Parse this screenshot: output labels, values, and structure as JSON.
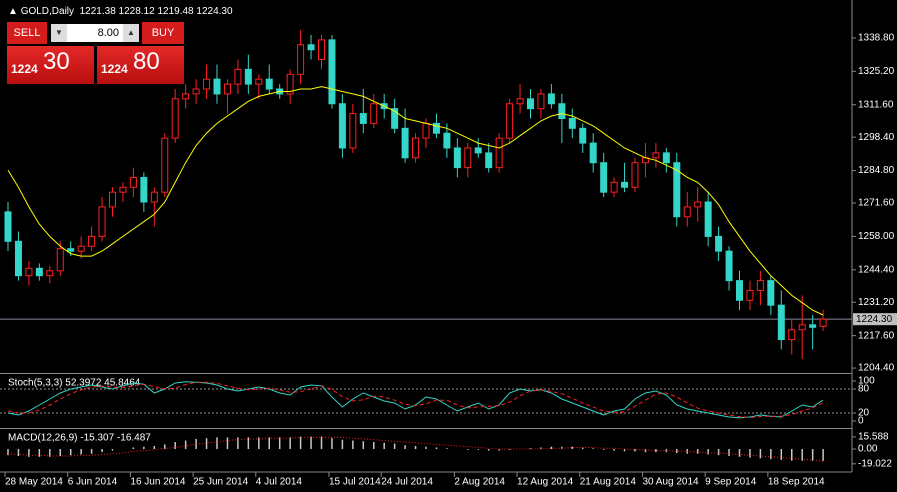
{
  "header": {
    "symbol": "GOLD,Daily",
    "ohlc": "1221.38 1228.12 1219.48 1224.30"
  },
  "trade_panel": {
    "sell": "SELL",
    "buy": "BUY",
    "volume": "8.00",
    "sell_big": "1224",
    "sell_small": "30",
    "buy_big": "1224",
    "buy_small": "80"
  },
  "chart_data": [
    {
      "type": "candlestick",
      "up_color": "#ff2020",
      "down_color": "#33d6c8",
      "ylim": [
        1202.8,
        1352.2
      ],
      "yticks": [
        {
          "value": 1338.8,
          "label": "1338.80"
        },
        {
          "value": 1325.2,
          "label": "1325.20"
        },
        {
          "value": 1311.6,
          "label": "1311.60"
        },
        {
          "value": 1298.4,
          "label": "1298.40"
        },
        {
          "value": 1284.8,
          "label": "1284.80"
        },
        {
          "value": 1271.6,
          "label": "1271.60"
        },
        {
          "value": 1258,
          "label": "1258.00"
        },
        {
          "value": 1244.4,
          "label": "1244.40"
        },
        {
          "value": 1231.2,
          "label": "1231.20"
        },
        {
          "value": 1217.6,
          "label": "1217.60"
        },
        {
          "value": 1204.4,
          "label": "1204.40"
        }
      ],
      "price_line": {
        "value": 1224.3,
        "label": "1224.30"
      },
      "categories": [
        "28 May 2014",
        null,
        null,
        null,
        null,
        null,
        "6 Jun 2014",
        null,
        null,
        null,
        null,
        null,
        "16 Jun 2014",
        null,
        null,
        null,
        null,
        null,
        "25 Jun 2014",
        null,
        null,
        null,
        null,
        null,
        "4 Jul 2014",
        null,
        null,
        null,
        null,
        null,
        null,
        "15 Jul 2014",
        null,
        null,
        null,
        null,
        "24 Jul 2014",
        null,
        null,
        null,
        null,
        null,
        null,
        "2 Aug 2014",
        null,
        null,
        null,
        null,
        null,
        "12 Aug 2014",
        null,
        null,
        null,
        null,
        null,
        "21 Aug 2014",
        null,
        null,
        null,
        null,
        null,
        "30 Aug 2014",
        null,
        null,
        null,
        null,
        null,
        "9 Sep 2014",
        null,
        null,
        null,
        null,
        null,
        "18 Sep 2014",
        null,
        null,
        null,
        null,
        null
      ],
      "candles": [
        [
          1268,
          1272,
          1252,
          1256
        ],
        [
          1256,
          1260,
          1240,
          1242
        ],
        [
          1242,
          1248,
          1238,
          1245
        ],
        [
          1245,
          1247,
          1240,
          1242
        ],
        [
          1242,
          1246,
          1239,
          1244
        ],
        [
          1244,
          1256,
          1242,
          1253
        ],
        [
          1253,
          1256,
          1250,
          1252
        ],
        [
          1252,
          1258,
          1249,
          1254
        ],
        [
          1254,
          1262,
          1252,
          1258
        ],
        [
          1258,
          1274,
          1256,
          1270
        ],
        [
          1270,
          1278,
          1266,
          1276
        ],
        [
          1276,
          1280,
          1272,
          1278
        ],
        [
          1278,
          1286,
          1274,
          1282
        ],
        [
          1282,
          1284,
          1268,
          1272
        ],
        [
          1272,
          1278,
          1262,
          1276
        ],
        [
          1276,
          1300,
          1274,
          1298
        ],
        [
          1298,
          1318,
          1296,
          1314
        ],
        [
          1314,
          1320,
          1310,
          1316
        ],
        [
          1316,
          1322,
          1312,
          1318
        ],
        [
          1318,
          1328,
          1314,
          1322
        ],
        [
          1322,
          1328,
          1312,
          1316
        ],
        [
          1316,
          1322,
          1308,
          1320
        ],
        [
          1320,
          1330,
          1316,
          1326
        ],
        [
          1326,
          1332,
          1316,
          1320
        ],
        [
          1320,
          1324,
          1314,
          1322
        ],
        [
          1322,
          1328,
          1316,
          1318
        ],
        [
          1318,
          1320,
          1314,
          1316
        ],
        [
          1316,
          1326,
          1312,
          1324
        ],
        [
          1324,
          1342,
          1320,
          1336
        ],
        [
          1336,
          1340,
          1330,
          1334
        ],
        [
          1330,
          1340,
          1326,
          1338
        ],
        [
          1338,
          1340,
          1310,
          1312
        ],
        [
          1312,
          1316,
          1290,
          1294
        ],
        [
          1294,
          1312,
          1292,
          1308
        ],
        [
          1308,
          1318,
          1300,
          1304
        ],
        [
          1304,
          1316,
          1302,
          1312
        ],
        [
          1312,
          1316,
          1306,
          1310
        ],
        [
          1310,
          1314,
          1300,
          1302
        ],
        [
          1302,
          1310,
          1288,
          1290
        ],
        [
          1290,
          1300,
          1288,
          1298
        ],
        [
          1298,
          1306,
          1294,
          1304
        ],
        [
          1304,
          1308,
          1298,
          1300
        ],
        [
          1300,
          1304,
          1290,
          1294
        ],
        [
          1294,
          1298,
          1282,
          1286
        ],
        [
          1286,
          1296,
          1282,
          1294
        ],
        [
          1294,
          1298,
          1290,
          1292
        ],
        [
          1292,
          1296,
          1284,
          1286
        ],
        [
          1286,
          1300,
          1284,
          1298
        ],
        [
          1298,
          1314,
          1296,
          1312
        ],
        [
          1312,
          1320,
          1308,
          1314
        ],
        [
          1314,
          1318,
          1306,
          1310
        ],
        [
          1310,
          1318,
          1306,
          1316
        ],
        [
          1316,
          1320,
          1310,
          1312
        ],
        [
          1312,
          1316,
          1296,
          1306
        ],
        [
          1306,
          1310,
          1298,
          1302
        ],
        [
          1302,
          1304,
          1292,
          1296
        ],
        [
          1296,
          1300,
          1284,
          1288
        ],
        [
          1288,
          1292,
          1274,
          1276
        ],
        [
          1276,
          1282,
          1274,
          1280
        ],
        [
          1280,
          1288,
          1276,
          1278
        ],
        [
          1278,
          1290,
          1276,
          1288
        ],
        [
          1288,
          1296,
          1282,
          1290
        ],
        [
          1290,
          1296,
          1286,
          1292
        ],
        [
          1292,
          1294,
          1284,
          1288
        ],
        [
          1288,
          1292,
          1262,
          1266
        ],
        [
          1266,
          1276,
          1262,
          1270
        ],
        [
          1270,
          1278,
          1264,
          1272
        ],
        [
          1272,
          1276,
          1254,
          1258
        ],
        [
          1258,
          1262,
          1248,
          1252
        ],
        [
          1252,
          1254,
          1236,
          1240
        ],
        [
          1240,
          1244,
          1228,
          1232
        ],
        [
          1232,
          1240,
          1228,
          1236
        ],
        [
          1236,
          1244,
          1230,
          1240
        ],
        [
          1240,
          1242,
          1226,
          1230
        ],
        [
          1230,
          1236,
          1212,
          1216
        ],
        [
          1216,
          1224,
          1210,
          1220
        ],
        [
          1220,
          1234,
          1208,
          1222
        ],
        [
          1222,
          1226,
          1212,
          1221
        ],
        [
          1221.38,
          1228.12,
          1219.48,
          1224.3
        ]
      ],
      "series": [
        {
          "style": "line",
          "color": "#ffff00",
          "values": [
            1285,
            1278,
            1270,
            1263,
            1258,
            1254,
            1251,
            1250,
            1250,
            1252,
            1255,
            1258,
            1261,
            1264,
            1267,
            1272,
            1280,
            1288,
            1295,
            1300,
            1304,
            1307,
            1310,
            1313,
            1315,
            1316,
            1317,
            1317,
            1318,
            1318,
            1319,
            1318,
            1317,
            1316,
            1315,
            1313,
            1311,
            1309,
            1306,
            1305,
            1304,
            1303,
            1302,
            1300,
            1298,
            1296,
            1295,
            1294,
            1296,
            1299,
            1302,
            1305,
            1307,
            1308,
            1307,
            1305,
            1303,
            1300,
            1297,
            1294,
            1292,
            1290,
            1289,
            1287,
            1285,
            1282,
            1280,
            1276,
            1271,
            1264,
            1258,
            1252,
            1247,
            1242,
            1238,
            1234,
            1231,
            1228,
            1226
          ]
        }
      ]
    },
    {
      "type": "line",
      "label": "Stoch(5,3,3) 52.3972 45.8464",
      "ylim": [
        -15,
        115
      ],
      "yticks": [
        100,
        80,
        20,
        0
      ],
      "levels": [
        80,
        20
      ],
      "series": [
        {
          "style": "line",
          "color": "#33d6c8",
          "values": [
            20,
            15,
            25,
            40,
            55,
            70,
            80,
            85,
            90,
            85,
            80,
            88,
            95,
            92,
            70,
            80,
            95,
            98,
            97,
            95,
            90,
            80,
            75,
            80,
            85,
            80,
            70,
            65,
            85,
            90,
            88,
            60,
            35,
            55,
            70,
            60,
            50,
            45,
            30,
            40,
            60,
            55,
            40,
            25,
            35,
            45,
            30,
            40,
            70,
            80,
            75,
            78,
            70,
            55,
            45,
            35,
            25,
            15,
            25,
            30,
            55,
            70,
            75,
            65,
            40,
            30,
            25,
            20,
            15,
            10,
            8,
            10,
            15,
            12,
            10,
            25,
            40,
            35,
            52.3972
          ]
        },
        {
          "style": "dashed",
          "color": "#ff2020",
          "values": [
            25,
            20,
            20,
            27,
            40,
            55,
            68,
            78,
            85,
            87,
            85,
            84,
            88,
            92,
            86,
            81,
            82,
            91,
            97,
            97,
            94,
            88,
            82,
            78,
            80,
            82,
            78,
            72,
            73,
            80,
            88,
            79,
            61,
            50,
            53,
            62,
            60,
            52,
            42,
            38,
            43,
            52,
            52,
            40,
            33,
            35,
            37,
            38,
            47,
            63,
            75,
            78,
            74,
            68,
            57,
            45,
            35,
            25,
            22,
            23,
            37,
            52,
            67,
            70,
            60,
            45,
            32,
            25,
            20,
            15,
            11,
            9,
            11,
            12,
            12,
            16,
            25,
            33,
            45.8464
          ]
        }
      ]
    },
    {
      "type": "bar",
      "label": "MACD(12,26,9) -15.307 -16.487",
      "ylim": [
        -27,
        24.5
      ],
      "yticks": [
        15.588,
        {
          "value": 0,
          "label": "0.00"
        },
        -19.022
      ],
      "series": [
        {
          "style": "bar",
          "color": "#c8c8c8",
          "values": [
            -8,
            -9,
            -10,
            -10,
            -10,
            -9,
            -8,
            -7,
            -6,
            -4,
            -2,
            0,
            2,
            3,
            4,
            6,
            9,
            11,
            13,
            14,
            15,
            15,
            15,
            15,
            15,
            15,
            15,
            15,
            16,
            16,
            16,
            14,
            12,
            11,
            10,
            9,
            8,
            7,
            5,
            4,
            3,
            2,
            1,
            0,
            -1,
            -1,
            -2,
            -2,
            -1,
            0,
            1,
            2,
            3,
            3,
            3,
            2,
            1,
            -1,
            -2,
            -3,
            -3,
            -4,
            -4,
            -4,
            -5,
            -6,
            -6,
            -7,
            -8,
            -9,
            -10,
            -11,
            -12,
            -13,
            -14,
            -15,
            -15,
            -15,
            -15.307
          ]
        },
        {
          "style": "dotted",
          "color": "#ff2020",
          "values": [
            -6,
            -7,
            -8,
            -8,
            -9,
            -9,
            -9,
            -8,
            -8,
            -7,
            -6,
            -5,
            -3,
            -2,
            -1,
            1,
            2,
            4,
            6,
            8,
            9,
            11,
            12,
            13,
            13,
            14,
            14,
            14,
            15,
            15,
            15,
            15,
            15,
            14,
            13,
            12,
            11,
            10,
            9,
            8,
            7,
            6,
            5,
            4,
            3,
            2,
            1,
            0,
            0,
            0,
            0,
            0,
            1,
            1,
            2,
            2,
            2,
            1,
            1,
            0,
            -1,
            -1,
            -2,
            -2,
            -3,
            -3,
            -4,
            -5,
            -5,
            -6,
            -7,
            -8,
            -9,
            -10,
            -11,
            -12,
            -13,
            -14,
            -16.487
          ]
        }
      ]
    }
  ]
}
